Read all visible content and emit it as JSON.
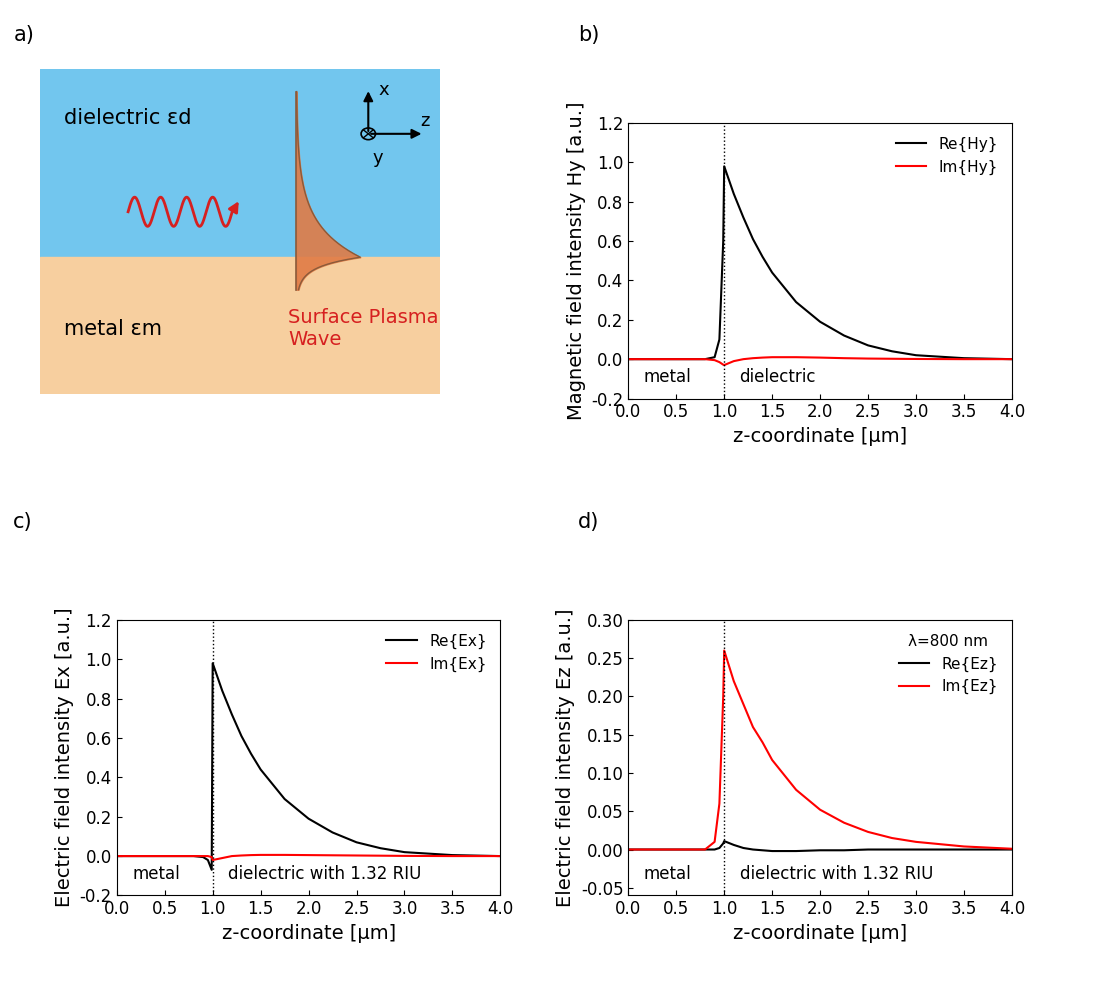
{
  "diagram": {
    "panel_label": "a)",
    "dielectric_label": "dielectric εd",
    "metal_label": "metal εm",
    "wave_label": "Surface Plasma\nWave",
    "axis_labels": {
      "x": "x",
      "y": "y",
      "z": "z"
    }
  },
  "chart_data": [
    {
      "type": "line",
      "panel_label": "b)",
      "x_label": "z-coordinate [μm]",
      "y_label": "Magnetic field intensity Hy [a.u.]",
      "annotations": [
        "metal",
        "dielectric"
      ],
      "interface_x": 1.0,
      "x": [
        0.0,
        0.5,
        0.8,
        0.9,
        0.95,
        0.99,
        1.0,
        1.1,
        1.2,
        1.3,
        1.4,
        1.5,
        1.75,
        2.0,
        2.25,
        2.5,
        2.75,
        3.0,
        3.5,
        4.0
      ],
      "series": [
        {
          "name": "Re{Hy}",
          "color": "#000000",
          "values": [
            0,
            0,
            0,
            0.01,
            0.1,
            0.6,
            0.98,
            0.84,
            0.72,
            0.61,
            0.52,
            0.44,
            0.29,
            0.19,
            0.12,
            0.07,
            0.04,
            0.02,
            0.005,
            0
          ]
        },
        {
          "name": "Im{Hy}",
          "color": "#ff0000",
          "values": [
            0,
            0,
            0,
            -0.005,
            -0.015,
            -0.028,
            -0.03,
            -0.01,
            0,
            0.005,
            0.008,
            0.01,
            0.01,
            0.008,
            0.005,
            0.003,
            0.002,
            0.001,
            0,
            0
          ]
        }
      ],
      "xlim": [
        0,
        4
      ],
      "xticks": [
        {
          "value": 0,
          "label": "0.0"
        },
        0.5,
        {
          "value": 1,
          "label": "1.0"
        },
        1.5,
        {
          "value": 2,
          "label": "2.0"
        },
        2.5,
        {
          "value": 3,
          "label": "3.0"
        },
        3.5,
        {
          "value": 4,
          "label": "4.0"
        }
      ],
      "ylim": [
        -0.2,
        1.2
      ],
      "yticks": [
        -0.2,
        {
          "value": 0,
          "label": "0.0"
        },
        0.2,
        0.4,
        0.6,
        0.8,
        {
          "value": 1,
          "label": "1.0"
        },
        1.2
      ],
      "legend": "upper right",
      "grid": false
    },
    {
      "type": "line",
      "panel_label": "c)",
      "x_label": "z-coordinate [μm]",
      "y_label": "Electric field intensity Ex [a.u.]",
      "annotations": [
        "metal",
        "dielectric with 1.32 RIU"
      ],
      "interface_x": 1.0,
      "x": [
        0.0,
        0.5,
        0.8,
        0.9,
        0.95,
        0.99,
        1.0,
        1.1,
        1.2,
        1.3,
        1.4,
        1.5,
        1.75,
        2.0,
        2.25,
        2.5,
        2.75,
        3.0,
        3.5,
        4.0
      ],
      "series": [
        {
          "name": "Re{Ex}",
          "color": "#000000",
          "values": [
            0,
            0,
            0,
            -0.005,
            -0.02,
            -0.07,
            0.98,
            0.84,
            0.72,
            0.61,
            0.52,
            0.44,
            0.29,
            0.19,
            0.12,
            0.07,
            0.04,
            0.02,
            0.005,
            0
          ]
        },
        {
          "name": "Im{Ex}",
          "color": "#ff0000",
          "values": [
            0,
            0,
            0,
            0,
            0,
            -0.005,
            -0.02,
            -0.01,
            0,
            0.003,
            0.005,
            0.006,
            0.006,
            0.005,
            0.004,
            0.003,
            0.002,
            0.001,
            0,
            0
          ]
        }
      ],
      "xlim": [
        0,
        4
      ],
      "xticks": [
        {
          "value": 0,
          "label": "0.0"
        },
        0.5,
        {
          "value": 1,
          "label": "1.0"
        },
        1.5,
        {
          "value": 2,
          "label": "2.0"
        },
        2.5,
        {
          "value": 3,
          "label": "3.0"
        },
        3.5,
        {
          "value": 4,
          "label": "4.0"
        }
      ],
      "ylim": [
        -0.2,
        1.2
      ],
      "yticks": [
        -0.2,
        {
          "value": 0,
          "label": "0.0"
        },
        0.2,
        0.4,
        0.6,
        0.8,
        {
          "value": 1,
          "label": "1.0"
        },
        1.2
      ],
      "legend": "upper right",
      "grid": false
    },
    {
      "type": "line",
      "panel_label": "d)",
      "x_label": "z-coordinate [μm]",
      "y_label": "Electric field intensity Ez [a.u.]",
      "annotations": [
        "metal",
        "dielectric with 1.32 RIU"
      ],
      "legend_title": "λ=800 nm",
      "interface_x": 1.0,
      "x": [
        0.0,
        0.5,
        0.8,
        0.9,
        0.95,
        0.99,
        1.0,
        1.1,
        1.2,
        1.3,
        1.4,
        1.5,
        1.75,
        2.0,
        2.25,
        2.5,
        2.75,
        3.0,
        3.5,
        4.0
      ],
      "series": [
        {
          "name": "Re{Ez}",
          "color": "#000000",
          "values": [
            0,
            0,
            0,
            0,
            0.002,
            0.008,
            0.011,
            0.006,
            0.002,
            0,
            -0.001,
            -0.002,
            -0.002,
            -0.001,
            -0.001,
            0,
            0,
            0,
            0,
            0
          ]
        },
        {
          "name": "Im{Ez}",
          "color": "#ff0000",
          "values": [
            0,
            0,
            0,
            0.01,
            0.06,
            0.2,
            0.26,
            0.22,
            0.19,
            0.16,
            0.14,
            0.117,
            0.078,
            0.052,
            0.035,
            0.023,
            0.015,
            0.01,
            0.004,
            0.001
          ]
        }
      ],
      "xlim": [
        0,
        4
      ],
      "xticks": [
        {
          "value": 0,
          "label": "0.0"
        },
        0.5,
        {
          "value": 1,
          "label": "1.0"
        },
        1.5,
        {
          "value": 2,
          "label": "2.0"
        },
        2.5,
        {
          "value": 3,
          "label": "3.0"
        },
        3.5,
        {
          "value": 4,
          "label": "4.0"
        }
      ],
      "ylim": [
        -0.06,
        0.3
      ],
      "yticks": [
        -0.05,
        {
          "value": 0,
          "label": "0.00"
        },
        0.05,
        {
          "value": 0.1,
          "label": "0.10"
        },
        0.15,
        {
          "value": 0.2,
          "label": "0.20"
        },
        0.25,
        {
          "value": 0.3,
          "label": "0.30"
        }
      ],
      "legend": "upper right",
      "grid": false
    }
  ]
}
